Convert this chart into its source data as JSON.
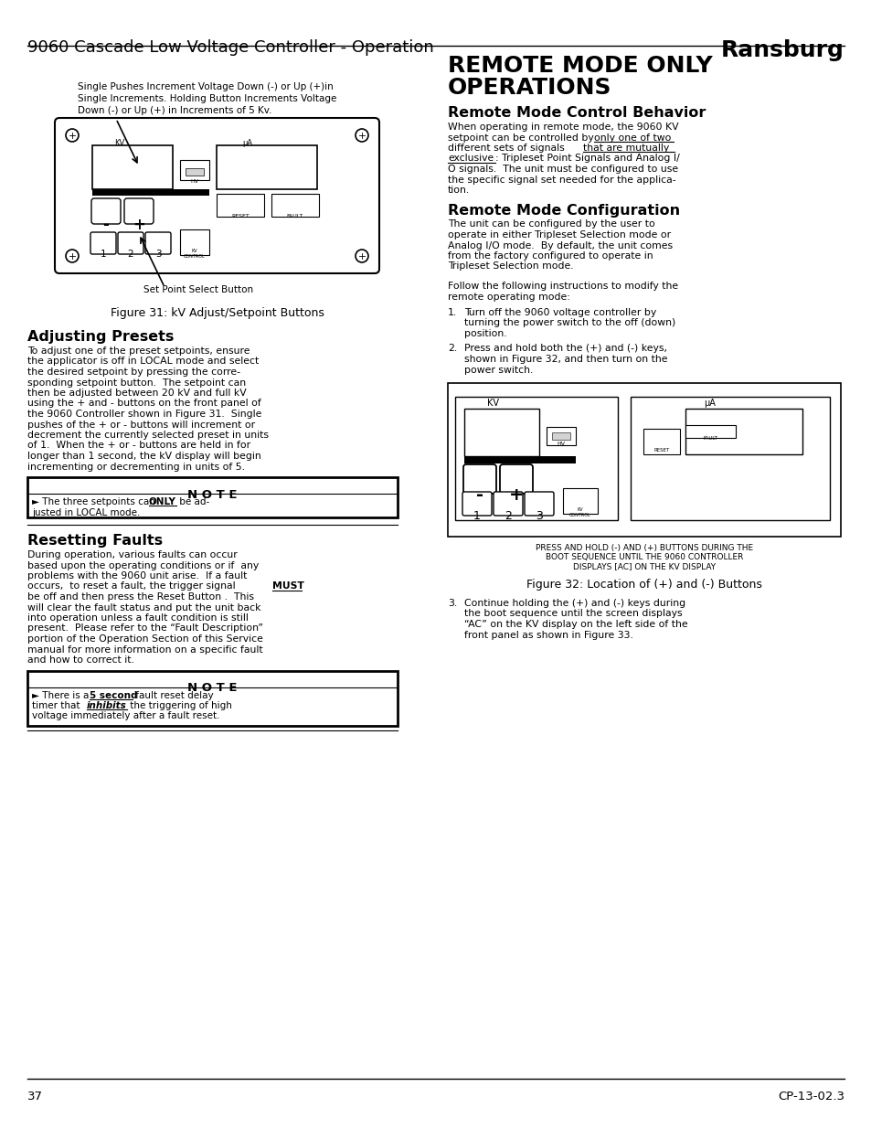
{
  "page_title": "9060 Cascade Low Voltage Controller - Operation",
  "brand": "Ransburg",
  "page_number": "37",
  "doc_number": "CP-13-02.3",
  "cap_lines": [
    "Single Pushes Increment Voltage Down (-) or Up (+)in",
    "Single Increments. Holding Button Increments Voltage",
    "Down (-) or Up (+) in Increments of 5 Kv."
  ],
  "fig31_caption": "Figure 31: kV Adjust/Setpoint Buttons",
  "set_point_label": "Set Point Select Button",
  "adjusting_presets_heading": "Adjusting Presets",
  "ap_lines": [
    "To adjust one of the preset setpoints, ensure",
    "the applicator is off in LOCAL mode and select",
    "the desired setpoint by pressing the corre-",
    "sponding setpoint button.  The setpoint can",
    "then be adjusted between 20 kV and full kV",
    "using the + and - buttons on the front panel of",
    "the 9060 Controller shown in Figure 31.  Single",
    "pushes of the + or - buttons will increment or",
    "decrement the currently selected preset in units",
    "of 1.  When the + or - buttons are held in for",
    "longer than 1 second, the kV display will begin",
    "incrementing or decrementing in units of 5."
  ],
  "note1_label": "N O T E",
  "note1_line1a": "► The three setpoints can ",
  "note1_only": "ONLY",
  "note1_line1b": " be ad-",
  "note1_line2": "justed in LOCAL mode.",
  "resetting_faults_heading": "Resetting Faults",
  "rf_lines": [
    "During operation, various faults can occur",
    "based upon the operating conditions or if  any",
    "problems with the 9060 unit arise.  If a fault",
    "occurs,  to reset a fault, the trigger signal ",
    "be off and then press the Reset Button .  This",
    "will clear the fault status and put the unit back",
    "into operation unless a fault condition is still",
    "present.  Please refer to the “Fault Description”",
    "portion of the Operation Section of this Service",
    "manual for more information on a specific fault",
    "and how to correct it."
  ],
  "rf_must": "MUST",
  "note2_label": "N O T E",
  "note2_pre": "► There is a ",
  "note2_5sec": "5 second",
  "note2_mid": " fault reset delay",
  "note2_timer": "timer that ",
  "note2_inhibits": "inhibits",
  "note2_post": " the triggering of high",
  "note2_last": "voltage immediately after a fault reset.",
  "remote_heading1": "REMOTE MODE ONLY",
  "remote_heading2": "OPERATIONS",
  "remote_control_heading": "Remote Mode Control Behavior",
  "rcb_lines": [
    "When operating in remote mode, the 9060 KV",
    "setpoint can be controlled by ",
    "different sets of signals ",
    "exclusive",
    "O signals.  The unit must be configured to use",
    "the specific signal set needed for the applica-",
    "tion."
  ],
  "rcb_ul1": "only one of two",
  "rcb_ul2": "that are mutually",
  "rcb_ul3": "exclusive",
  "rcb_excl_rest": ": Tripleset Point Signals and Analog I/",
  "remote_config_heading": "Remote Mode Configuration",
  "rmc_lines": [
    "The unit can be configured by the user to",
    "operate in either Tripleset Selection mode or",
    "Analog I/O mode.  By default, the unit comes",
    "from the factory configured to operate in",
    "Tripleset Selection mode."
  ],
  "follow_line1": "Follow the following instructions to modify the",
  "follow_line2": "remote operating mode:",
  "step1_num": "1.",
  "step1_lines": [
    "Turn off the 9060 voltage controller by",
    "turning the power switch to the off (down)",
    "position."
  ],
  "step2_num": "2.",
  "step2_lines": [
    "Press and hold both the (+) and (-) keys,",
    "shown in Figure 32, and then turn on the",
    "power switch."
  ],
  "fig32_subcaption": "PRESS AND HOLD (-) AND (+) BUTTONS DURING THE\nBOOT SEQUENCE UNTIL THE 9060 CONTROLLER\nDISPLAYS [AC] ON THE KV DISPLAY",
  "fig32_caption": "Figure 32: Location of (+) and (-) Buttons",
  "step3_num": "3.",
  "step3_lines": [
    "Continue holding the (+) and (-) keys during",
    "the boot sequence until the screen displays",
    "“AC” on the KV display on the left side of the",
    "front panel as shown in Figure 33."
  ]
}
